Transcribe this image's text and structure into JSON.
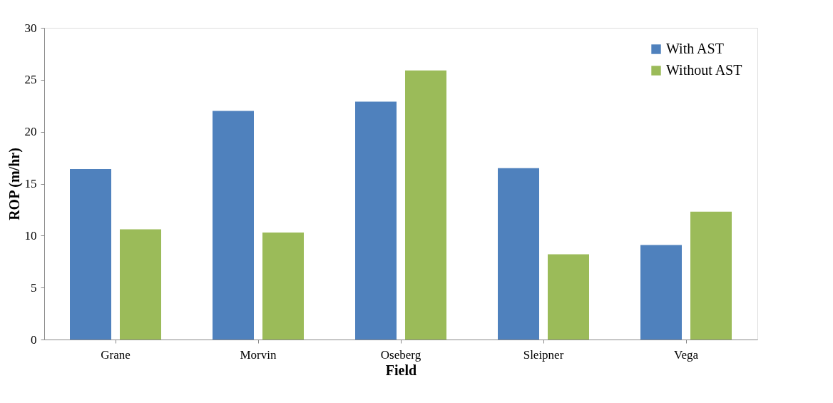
{
  "chart_data": {
    "type": "bar",
    "xlabel": "Field",
    "ylabel": "ROP (m/hr)",
    "categories": [
      "Grane",
      "Morvin",
      "Oseberg",
      "Sleipner",
      "Vega"
    ],
    "series": [
      {
        "name": "With AST",
        "color": "#4f81bd",
        "values": [
          16.4,
          22.0,
          22.9,
          16.5,
          9.1
        ]
      },
      {
        "name": "Without AST",
        "color": "#9bbb59",
        "values": [
          10.6,
          10.3,
          25.9,
          8.2,
          12.3
        ]
      }
    ],
    "ylim": [
      0,
      30
    ],
    "yticks": [
      0,
      5,
      10,
      15,
      20,
      25,
      30
    ],
    "grid": false,
    "legend": "top right"
  }
}
